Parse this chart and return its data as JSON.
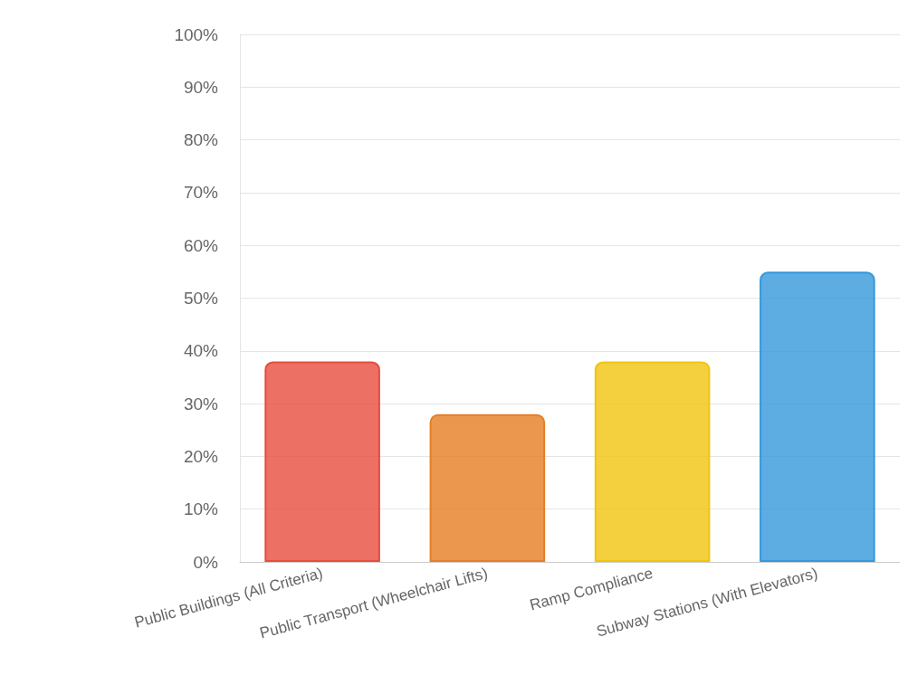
{
  "chart_data": {
    "type": "bar",
    "categories": [
      "Public Buildings (All Criteria)",
      "Public Transport (Wheelchair Lifts)",
      "Ramp Compliance",
      "Subway Stations (With Elevators)"
    ],
    "values": [
      38,
      28,
      38,
      55
    ],
    "colors": [
      "#e74c3c",
      "#e67e22",
      "#f1c40f",
      "#3498db"
    ],
    "ylim": [
      0,
      100
    ],
    "yticks": [
      {
        "value": 0,
        "label": "0%"
      },
      {
        "value": 10,
        "label": "10%"
      },
      {
        "value": 20,
        "label": "20%"
      },
      {
        "value": 30,
        "label": "30%"
      },
      {
        "value": 40,
        "label": "40%"
      },
      {
        "value": 50,
        "label": "50%"
      },
      {
        "value": 60,
        "label": "60%"
      },
      {
        "value": 70,
        "label": "70%"
      },
      {
        "value": 80,
        "label": "80%"
      },
      {
        "value": 90,
        "label": "90%"
      },
      {
        "value": 100,
        "label": "100%"
      }
    ],
    "grid": "y"
  }
}
